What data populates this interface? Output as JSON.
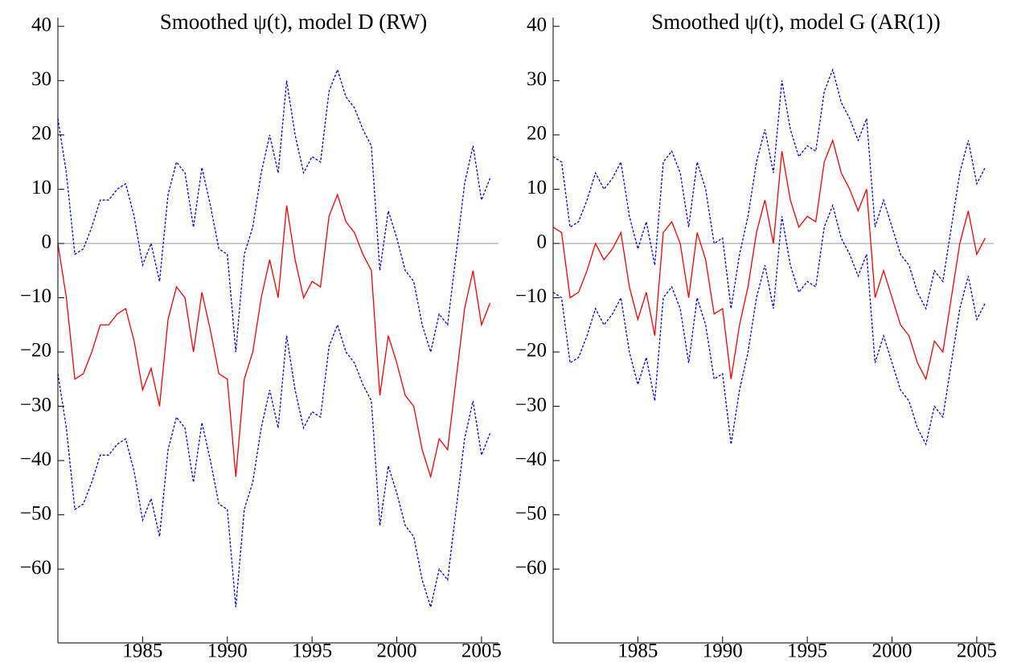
{
  "chart_data": [
    {
      "type": "line",
      "title": "Smoothed ψ(t), model D (RW)",
      "x": [
        1980,
        1980.5,
        1981,
        1981.5,
        1982,
        1982.5,
        1983,
        1983.5,
        1984,
        1984.5,
        1985,
        1985.5,
        1986,
        1986.5,
        1987,
        1987.5,
        1988,
        1988.5,
        1989,
        1989.5,
        1990,
        1990.5,
        1991,
        1991.5,
        1992,
        1992.5,
        1993,
        1993.5,
        1994,
        1994.5,
        1995,
        1995.5,
        1996,
        1996.5,
        1997,
        1997.5,
        1998,
        1998.5,
        1999,
        1999.5,
        2000,
        2000.5,
        2001,
        2001.5,
        2002,
        2002.5,
        2003,
        2003.5,
        2004,
        2004.5,
        2005,
        2005.5
      ],
      "series": [
        {
          "color": "#0000ff",
          "dashed": true,
          "values": [
            23,
            13,
            -2,
            -1,
            3,
            8,
            8,
            10,
            11,
            5,
            -4,
            0,
            -7,
            9,
            15,
            13,
            3,
            14,
            7,
            -1,
            -2,
            -20,
            -2,
            3,
            13,
            20,
            13,
            30,
            20,
            13,
            16,
            15,
            28,
            32,
            27,
            25,
            21,
            18,
            -5,
            6,
            1,
            -5,
            -7,
            -15,
            -20,
            -13,
            -15,
            -2,
            11,
            18,
            8,
            12
          ]
        },
        {
          "color": "#ff0000",
          "dashed": false,
          "values": [
            0,
            -10,
            -25,
            -24,
            -20,
            -15,
            -15,
            -13,
            -12,
            -18,
            -27,
            -23,
            -30,
            -14,
            -8,
            -10,
            -20,
            -9,
            -16,
            -24,
            -25,
            -43,
            -25,
            -20,
            -10,
            -3,
            -10,
            7,
            -3,
            -10,
            -7,
            -8,
            5,
            9,
            4,
            2,
            -2,
            -5,
            -28,
            -17,
            -22,
            -28,
            -30,
            -38,
            -43,
            -36,
            -38,
            -25,
            -12,
            -5,
            -15,
            -11
          ]
        },
        {
          "color": "#0000ff",
          "dashed": true,
          "values": [
            -24,
            -34,
            -49,
            -48,
            -44,
            -39,
            -39,
            -37,
            -36,
            -42,
            -51,
            -47,
            -54,
            -38,
            -32,
            -34,
            -44,
            -33,
            -40,
            -48,
            -49,
            -67,
            -49,
            -44,
            -34,
            -27,
            -34,
            -17,
            -27,
            -34,
            -31,
            -32,
            -19,
            -15,
            -20,
            -22,
            -26,
            -29,
            -52,
            -41,
            -46,
            -52,
            -54,
            -62,
            -67,
            -60,
            -62,
            -49,
            -36,
            -29,
            -39,
            -35
          ]
        }
      ],
      "xlim": [
        1980,
        2006
      ],
      "xticks": [
        1985,
        1990,
        1995,
        2000,
        2005
      ],
      "ylim": [
        -73.6,
        41.6
      ],
      "yticks": [
        {
          "value": 40,
          "label": "40"
        },
        {
          "value": 30,
          "label": "30"
        },
        {
          "value": 20,
          "label": "20"
        },
        {
          "value": 10,
          "label": "10"
        },
        {
          "value": 0,
          "label": "0"
        },
        {
          "value": -10,
          "label": "−10"
        },
        {
          "value": -20,
          "label": "−20"
        },
        {
          "value": -30,
          "label": "−30"
        },
        {
          "value": -40,
          "label": "−40"
        },
        {
          "value": -50,
          "label": "−50"
        },
        {
          "value": -60,
          "label": "−60"
        }
      ],
      "reference_line": 0
    },
    {
      "type": "line",
      "title": "Smoothed ψ(t), model G (AR(1))",
      "x": [
        1980,
        1980.5,
        1981,
        1981.5,
        1982,
        1982.5,
        1983,
        1983.5,
        1984,
        1984.5,
        1985,
        1985.5,
        1986,
        1986.5,
        1987,
        1987.5,
        1988,
        1988.5,
        1989,
        1989.5,
        1990,
        1990.5,
        1991,
        1991.5,
        1992,
        1992.5,
        1993,
        1993.5,
        1994,
        1994.5,
        1995,
        1995.5,
        1996,
        1996.5,
        1997,
        1997.5,
        1998,
        1998.5,
        1999,
        1999.5,
        2000,
        2000.5,
        2001,
        2001.5,
        2002,
        2002.5,
        2003,
        2003.5,
        2004,
        2004.5,
        2005,
        2005.5
      ],
      "series": [
        {
          "color": "#0000ff",
          "dashed": true,
          "values": [
            16,
            15,
            3,
            4,
            8,
            13,
            10,
            12,
            15,
            5,
            -1,
            4,
            -4,
            15,
            17,
            13,
            3,
            15,
            10,
            0,
            1,
            -12,
            -2,
            5,
            15,
            21,
            13,
            30,
            21,
            16,
            18,
            17,
            28,
            32,
            26,
            23,
            19,
            23,
            3,
            8,
            3,
            -2,
            -4,
            -9,
            -12,
            -5,
            -7,
            3,
            13,
            19,
            11,
            14
          ]
        },
        {
          "color": "#ff0000",
          "dashed": false,
          "values": [
            3,
            2,
            -10,
            -9,
            -5,
            0,
            -3,
            -1,
            2,
            -8,
            -14,
            -9,
            -17,
            2,
            4,
            0,
            -10,
            2,
            -3,
            -13,
            -12,
            -25,
            -15,
            -8,
            2,
            8,
            0,
            17,
            8,
            3,
            5,
            4,
            15,
            19,
            13,
            10,
            6,
            10,
            -10,
            -5,
            -10,
            -15,
            -17,
            -22,
            -25,
            -18,
            -20,
            -10,
            0,
            6,
            -2,
            1
          ]
        },
        {
          "color": "#0000ff",
          "dashed": true,
          "values": [
            -9,
            -10,
            -22,
            -21,
            -17,
            -12,
            -15,
            -13,
            -10,
            -20,
            -26,
            -21,
            -29,
            -10,
            -8,
            -12,
            -22,
            -10,
            -15,
            -25,
            -24,
            -37,
            -27,
            -20,
            -10,
            -4,
            -12,
            5,
            -4,
            -9,
            -7,
            -8,
            3,
            7,
            1,
            -2,
            -6,
            -2,
            -22,
            -17,
            -22,
            -27,
            -29,
            -34,
            -37,
            -30,
            -32,
            -22,
            -12,
            -6,
            -14,
            -11
          ]
        }
      ],
      "xlim": [
        1980,
        2006
      ],
      "xticks": [
        1985,
        1990,
        1995,
        2000,
        2005
      ],
      "ylim": [
        -73.6,
        41.6
      ],
      "yticks": [
        {
          "value": 40,
          "label": "40"
        },
        {
          "value": 30,
          "label": "30"
        },
        {
          "value": 20,
          "label": "20"
        },
        {
          "value": 10,
          "label": "10"
        },
        {
          "value": 0,
          "label": "0"
        },
        {
          "value": -10,
          "label": "−10"
        },
        {
          "value": -20,
          "label": "−20"
        },
        {
          "value": -30,
          "label": "−30"
        },
        {
          "value": -40,
          "label": "−40"
        },
        {
          "value": -50,
          "label": "−50"
        },
        {
          "value": -60,
          "label": "−60"
        }
      ],
      "reference_line": 0
    }
  ]
}
